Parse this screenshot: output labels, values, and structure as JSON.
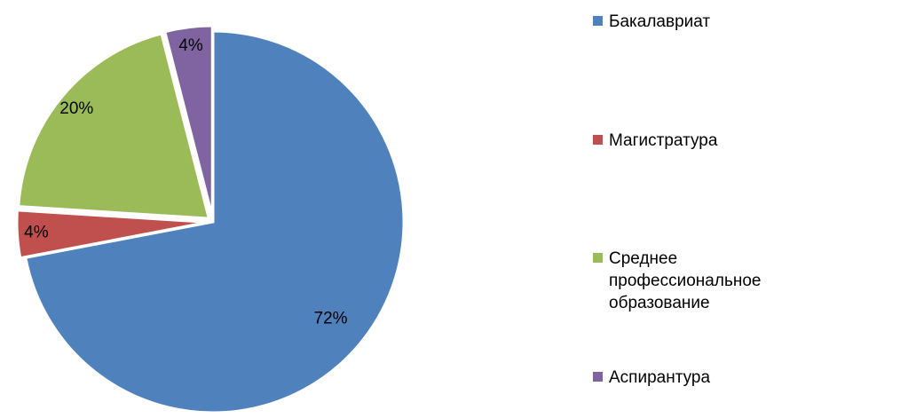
{
  "chart_data": {
    "type": "pie",
    "categories": [
      "Бакалавриат",
      "Магистратура",
      "Среднее профессиональное образование",
      "Аспирантура"
    ],
    "values": [
      72,
      4,
      20,
      4
    ],
    "value_labels": [
      "72%",
      "4%",
      "20%",
      "4%"
    ],
    "colors": [
      "#4f81bd",
      "#c0504d",
      "#9bbb59",
      "#8064a2"
    ],
    "legend": "right"
  }
}
